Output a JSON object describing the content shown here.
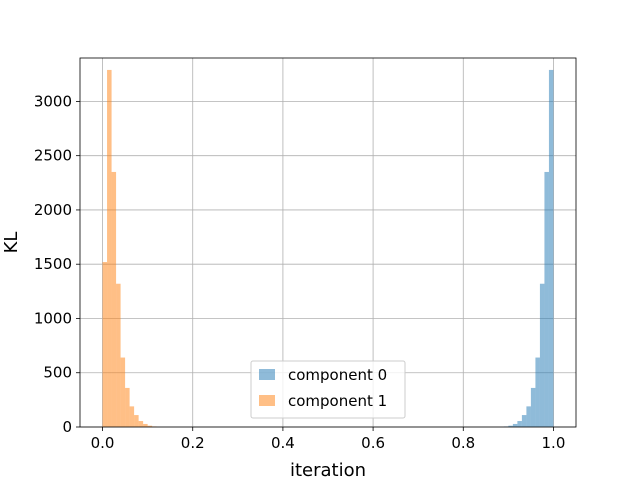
{
  "chart_data": {
    "type": "bar",
    "title": "",
    "xlabel": "iteration",
    "ylabel": "KL",
    "xlim": [
      -0.05,
      1.05
    ],
    "ylim": [
      0,
      3400
    ],
    "xticks": [
      0.0,
      0.2,
      0.4,
      0.6,
      0.8,
      1.0
    ],
    "xtick_labels": [
      "0.0",
      "0.2",
      "0.4",
      "0.6",
      "0.8",
      "1.0"
    ],
    "yticks": [
      0,
      500,
      1000,
      1500,
      2000,
      2500,
      3000
    ],
    "ytick_labels": [
      "0",
      "500",
      "1000",
      "1500",
      "2000",
      "2500",
      "3000"
    ],
    "grid": true,
    "legend_position": "lower-center",
    "series": [
      {
        "name": "component 0",
        "color": "#1f77b4",
        "alpha": 0.5,
        "bin_width": 0.01,
        "bin_starts": [
          0.89,
          0.9,
          0.91,
          0.92,
          0.93,
          0.94,
          0.95,
          0.96,
          0.97,
          0.98,
          0.99
        ],
        "values": [
          5,
          12,
          28,
          55,
          110,
          190,
          360,
          640,
          1320,
          2350,
          3290
        ]
      },
      {
        "name": "component 1",
        "color": "#ff7f0e",
        "alpha": 0.5,
        "bin_width": 0.01,
        "bin_starts": [
          0.0,
          0.01,
          0.02,
          0.03,
          0.04,
          0.05,
          0.06,
          0.07,
          0.08,
          0.09,
          0.1,
          0.11
        ],
        "values": [
          1520,
          3290,
          2350,
          1320,
          640,
          360,
          190,
          110,
          55,
          28,
          12,
          5
        ]
      }
    ]
  }
}
